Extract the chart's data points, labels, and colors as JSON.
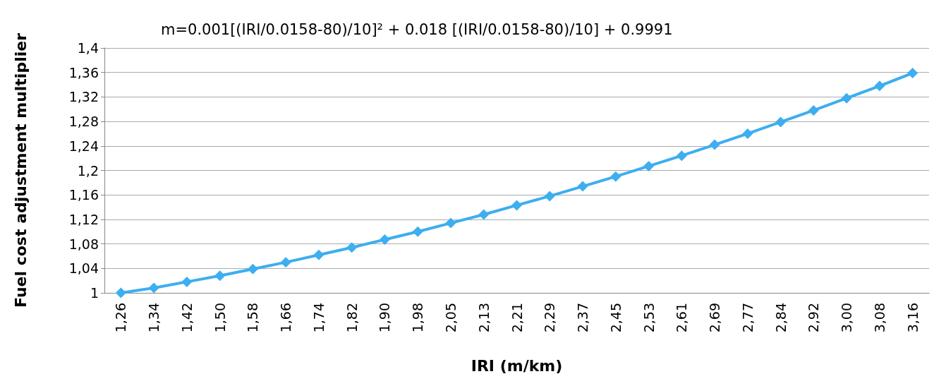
{
  "chart_data": {
    "type": "line",
    "title": "m=0.001[(IRI/0.0158-80)/10]² + 0.018 [(IRI/0.0158-80)/10] + 0.9991",
    "xlabel": "IRI (m/km)",
    "ylabel": "Fuel cost adjustment multiplier",
    "categories": [
      "1,26",
      "1,34",
      "1,42",
      "1,50",
      "1,58",
      "1,66",
      "1,74",
      "1,82",
      "1,90",
      "1,98",
      "2,05",
      "2,13",
      "2,21",
      "2,29",
      "2,37",
      "2,45",
      "2,53",
      "2,61",
      "2,69",
      "2,77",
      "2,84",
      "2,92",
      "3,00",
      "3,08",
      "3,16"
    ],
    "series": [
      {
        "color": "#3daef0",
        "values": [
          1.0,
          1.008,
          1.018,
          1.028,
          1.039,
          1.05,
          1.062,
          1.074,
          1.087,
          1.1,
          1.114,
          1.128,
          1.143,
          1.158,
          1.174,
          1.19,
          1.207,
          1.224,
          1.242,
          1.26,
          1.279,
          1.298,
          1.318,
          1.338,
          1.359
        ]
      }
    ],
    "ylim": [
      1,
      1.4
    ],
    "yticks": [
      1,
      {
        "value": 1.04,
        "label": "1,04"
      },
      {
        "value": 1.08,
        "label": "1,08"
      },
      {
        "value": 1.12,
        "label": "1,12"
      },
      {
        "value": 1.16,
        "label": "1,16"
      },
      {
        "value": 1.2,
        "label": "1,2"
      },
      {
        "value": 1.24,
        "label": "1,24"
      },
      {
        "value": 1.28,
        "label": "1,28"
      },
      {
        "value": 1.32,
        "label": "1,32"
      },
      {
        "value": 1.36,
        "label": "1,36"
      },
      {
        "value": 1.4,
        "label": "1,4"
      }
    ],
    "grid": "y",
    "marker": "diamond",
    "line_style": "solid"
  }
}
